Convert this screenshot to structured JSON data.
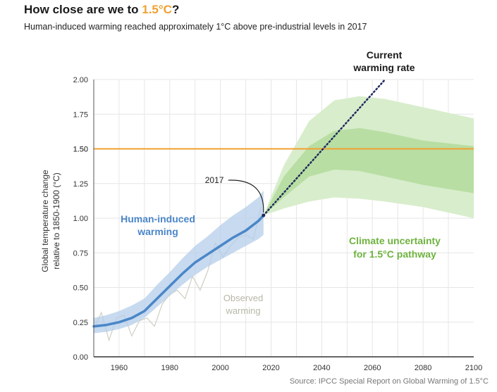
{
  "header": {
    "title_prefix": "How close are we to ",
    "title_highlight": "1.5°C",
    "title_suffix": "?",
    "subtitle": "Human-induced warming reached approximately 1°C above pre-industrial levels in 2017"
  },
  "source": "Source: IPCC Special Report on Global Warming of 1.5°C",
  "colors": {
    "human": "#4a86c8",
    "human_band": "#b4cdea",
    "observed": "#cfcfc4",
    "climate_outer": "#d8edcc",
    "climate_inner": "#b8dea3",
    "climate_text": "#6fb33f",
    "threshold": "#f0a030",
    "current_rate": "#1f2a5c"
  },
  "chart_data": {
    "type": "line",
    "title": "How close are we to 1.5°C?",
    "xlabel": "",
    "ylabel_lines": [
      "Global temperature change",
      "relative to 1850-1900 (°C)"
    ],
    "xlim": [
      1950,
      2100
    ],
    "ylim": [
      0,
      2.0
    ],
    "x_ticks": [
      1960,
      1980,
      2000,
      2020,
      2040,
      2060,
      2080,
      2100
    ],
    "y_ticks": [
      "0.00",
      "0.25",
      "0.50",
      "0.75",
      "1.00",
      "1.25",
      "1.50",
      "1.75",
      "2.00"
    ],
    "threshold": {
      "value": 1.5,
      "label": "1.50"
    },
    "human_induced": {
      "name": "Human-induced warming",
      "label_lines": [
        "Human-induced",
        "warming"
      ],
      "x": [
        1950,
        1955,
        1960,
        1965,
        1970,
        1975,
        1980,
        1985,
        1990,
        1995,
        2000,
        2005,
        2010,
        2015,
        2017
      ],
      "y": [
        0.22,
        0.23,
        0.25,
        0.28,
        0.33,
        0.42,
        0.51,
        0.6,
        0.68,
        0.74,
        0.8,
        0.86,
        0.91,
        0.98,
        1.02
      ],
      "band_lower": [
        0.17,
        0.18,
        0.2,
        0.23,
        0.28,
        0.36,
        0.44,
        0.52,
        0.59,
        0.65,
        0.7,
        0.75,
        0.8,
        0.85,
        0.88
      ],
      "band_upper": [
        0.28,
        0.3,
        0.33,
        0.37,
        0.42,
        0.52,
        0.61,
        0.71,
        0.8,
        0.87,
        0.95,
        1.02,
        1.08,
        1.15,
        1.2
      ]
    },
    "observed": {
      "name": "Observed warming",
      "label_lines": [
        "Observed",
        "warming"
      ],
      "x": [
        1950,
        1953,
        1956,
        1959,
        1962,
        1965,
        1968,
        1971,
        1974,
        1977,
        1980,
        1983,
        1986,
        1989,
        1992,
        1995,
        1998,
        2001,
        2004,
        2007,
        2010,
        2013,
        2016
      ],
      "y": [
        0.2,
        0.32,
        0.12,
        0.28,
        0.3,
        0.15,
        0.26,
        0.28,
        0.22,
        0.38,
        0.45,
        0.48,
        0.42,
        0.58,
        0.48,
        0.62,
        0.82,
        0.72,
        0.8,
        0.86,
        0.88,
        0.85,
        1.08
      ]
    },
    "current_rate": {
      "name": "Current warming rate",
      "label_lines": [
        "Current",
        "warming rate"
      ],
      "x": [
        2017,
        2065
      ],
      "y": [
        1.02,
        2.0
      ]
    },
    "climate_uncertainty": {
      "name": "Climate uncertainty for 1.5°C pathway",
      "label_lines": [
        "Climate uncertainty",
        "for 1.5°C pathway"
      ],
      "x": [
        2017,
        2025,
        2035,
        2045,
        2055,
        2065,
        2080,
        2100
      ],
      "outer_lower": [
        1.02,
        1.07,
        1.12,
        1.15,
        1.14,
        1.12,
        1.08,
        1.0
      ],
      "outer_upper": [
        1.02,
        1.38,
        1.7,
        1.85,
        1.88,
        1.86,
        1.8,
        1.72
      ],
      "inner_lower": [
        1.02,
        1.15,
        1.3,
        1.35,
        1.34,
        1.3,
        1.24,
        1.18
      ],
      "inner_upper": [
        1.02,
        1.3,
        1.52,
        1.63,
        1.65,
        1.62,
        1.56,
        1.52
      ]
    },
    "annotation_2017": {
      "x": 2017,
      "y": 1.02,
      "label": "2017"
    }
  }
}
